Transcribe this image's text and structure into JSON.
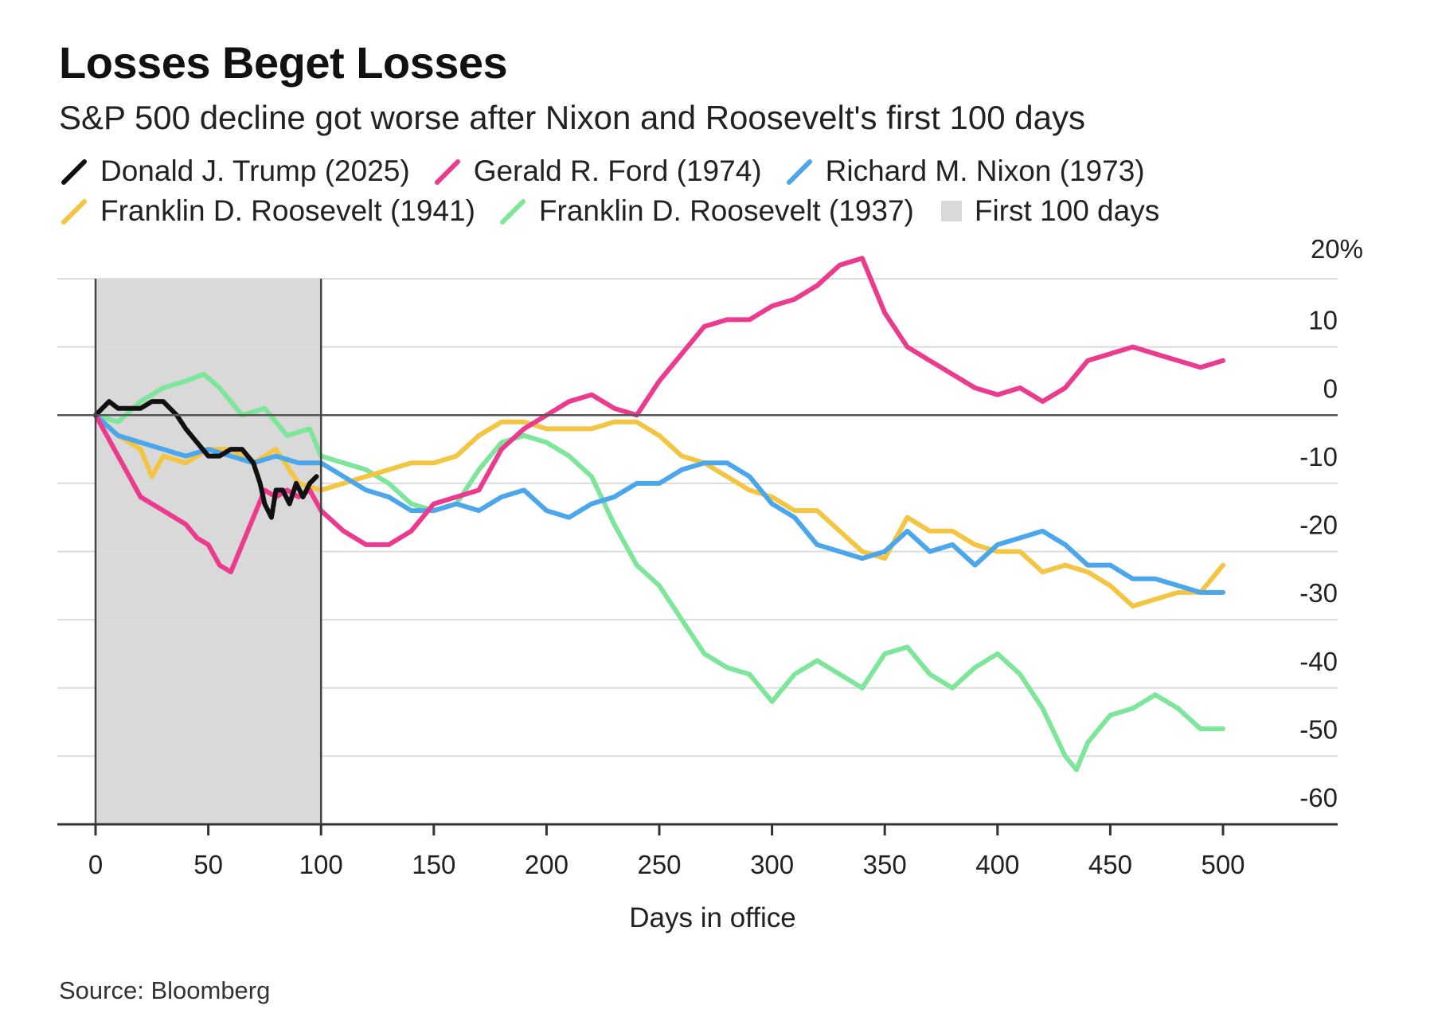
{
  "title": "Losses Beget Losses",
  "subtitle": "S&P 500 decline got worse after Nixon and Roosevelt's first 100 days",
  "source": "Source: Bloomberg",
  "chart_data": {
    "type": "line",
    "xlabel": "Days in office",
    "ylabel": "",
    "xlim": [
      -17,
      530
    ],
    "ylim": [
      -60,
      20
    ],
    "x_ticks": [
      0,
      50,
      100,
      150,
      200,
      250,
      300,
      350,
      400,
      450,
      500
    ],
    "x_tick_labels": [
      "0",
      "50",
      "100",
      "150",
      "200",
      "250",
      "300",
      "350",
      "400",
      "450",
      "500"
    ],
    "y_ticks": [
      20,
      10,
      0,
      -10,
      -20,
      -30,
      -40,
      -50,
      -60
    ],
    "y_tick_labels": [
      "20%",
      "10",
      "0",
      "-10",
      "-20",
      "-30",
      "-40",
      "-50",
      "-60"
    ],
    "shaded_region": {
      "label": "First 100 days",
      "x": [
        0,
        100
      ],
      "color": "#d9d9d9"
    },
    "series": [
      {
        "name": "Franklin D. Roosevelt (1937)",
        "color": "#7de69a",
        "x": [
          0,
          10,
          20,
          30,
          40,
          48,
          55,
          65,
          75,
          85,
          95,
          100,
          110,
          120,
          130,
          140,
          150,
          160,
          170,
          180,
          190,
          200,
          210,
          220,
          230,
          240,
          250,
          260,
          270,
          280,
          290,
          300,
          310,
          320,
          330,
          340,
          350,
          360,
          370,
          380,
          390,
          400,
          410,
          420,
          430,
          435,
          440,
          450,
          460,
          470,
          480,
          490,
          500
        ],
        "y": [
          0,
          -1,
          2,
          4,
          5,
          6,
          4,
          0,
          1,
          -3,
          -2,
          -6,
          -7,
          -8,
          -10,
          -13,
          -14,
          -13,
          -8,
          -4,
          -3,
          -4,
          -6,
          -9,
          -16,
          -22,
          -25,
          -30,
          -35,
          -37,
          -38,
          -42,
          -38,
          -36,
          -38,
          -40,
          -35,
          -34,
          -38,
          -40,
          -37,
          -35,
          -38,
          -43,
          -50,
          -52,
          -48,
          -44,
          -43,
          -41,
          -43,
          -46,
          -46
        ]
      },
      {
        "name": "Franklin D. Roosevelt (1941)",
        "color": "#f4c542",
        "x": [
          0,
          10,
          20,
          25,
          30,
          40,
          50,
          60,
          70,
          80,
          90,
          100,
          110,
          120,
          130,
          140,
          150,
          160,
          170,
          180,
          190,
          200,
          210,
          220,
          230,
          240,
          250,
          260,
          270,
          280,
          290,
          300,
          310,
          320,
          330,
          340,
          350,
          360,
          370,
          380,
          390,
          400,
          410,
          420,
          430,
          440,
          450,
          460,
          470,
          480,
          490,
          500
        ],
        "y": [
          0,
          -3,
          -5,
          -9,
          -6,
          -7,
          -5,
          -5,
          -7,
          -5,
          -10,
          -11,
          -10,
          -9,
          -8,
          -7,
          -7,
          -6,
          -3,
          -1,
          -1,
          -2,
          -2,
          -2,
          -1,
          -1,
          -3,
          -6,
          -7,
          -9,
          -11,
          -12,
          -14,
          -14,
          -17,
          -20,
          -21,
          -15,
          -17,
          -17,
          -19,
          -20,
          -20,
          -23,
          -22,
          -23,
          -25,
          -28,
          -27,
          -26,
          -26,
          -22
        ]
      },
      {
        "name": "Richard M. Nixon (1973)",
        "color": "#4ba6ec",
        "x": [
          0,
          10,
          20,
          30,
          40,
          50,
          60,
          70,
          80,
          90,
          100,
          110,
          120,
          130,
          140,
          150,
          160,
          170,
          180,
          190,
          200,
          210,
          220,
          230,
          240,
          250,
          260,
          270,
          280,
          290,
          300,
          310,
          320,
          330,
          340,
          350,
          360,
          370,
          380,
          390,
          400,
          410,
          420,
          430,
          440,
          450,
          460,
          470,
          480,
          490,
          500
        ],
        "y": [
          0,
          -3,
          -4,
          -5,
          -6,
          -5,
          -6,
          -7,
          -6,
          -7,
          -7,
          -9,
          -11,
          -12,
          -14,
          -14,
          -13,
          -14,
          -12,
          -11,
          -14,
          -15,
          -13,
          -12,
          -10,
          -10,
          -8,
          -7,
          -7,
          -9,
          -13,
          -15,
          -19,
          -20,
          -21,
          -20,
          -17,
          -20,
          -19,
          -22,
          -19,
          -18,
          -17,
          -19,
          -22,
          -22,
          -24,
          -24,
          -25,
          -26,
          -26
        ]
      },
      {
        "name": "Gerald R. Ford (1974)",
        "color": "#ec3a8e",
        "x": [
          0,
          5,
          10,
          15,
          20,
          25,
          30,
          35,
          40,
          45,
          50,
          55,
          60,
          65,
          70,
          75,
          80,
          85,
          90,
          95,
          100,
          110,
          120,
          130,
          140,
          150,
          160,
          170,
          180,
          190,
          200,
          210,
          220,
          230,
          240,
          250,
          260,
          270,
          280,
          290,
          300,
          310,
          320,
          330,
          340,
          350,
          360,
          370,
          380,
          390,
          400,
          410,
          420,
          430,
          440,
          450,
          460,
          470,
          480,
          490,
          500
        ],
        "y": [
          0,
          -3,
          -6,
          -9,
          -12,
          -13,
          -14,
          -15,
          -16,
          -18,
          -19,
          -22,
          -23,
          -19,
          -15,
          -11,
          -12,
          -11,
          -12,
          -11,
          -14,
          -17,
          -19,
          -19,
          -17,
          -13,
          -12,
          -11,
          -5,
          -2,
          0,
          2,
          3,
          1,
          0,
          5,
          9,
          13,
          14,
          14,
          16,
          17,
          19,
          22,
          23,
          15,
          10,
          8,
          6,
          4,
          3,
          4,
          2,
          4,
          8,
          9,
          10,
          9,
          8,
          7,
          8
        ]
      },
      {
        "name": "Donald J. Trump (2025)",
        "color": "#111111",
        "x": [
          0,
          3,
          6,
          10,
          15,
          20,
          25,
          30,
          33,
          36,
          40,
          45,
          50,
          55,
          60,
          65,
          70,
          73,
          75,
          78,
          80,
          83,
          86,
          89,
          92,
          95,
          98
        ],
        "y": [
          0,
          1,
          2,
          1,
          1,
          1,
          2,
          2,
          1,
          0,
          -2,
          -4,
          -6,
          -6,
          -5,
          -5,
          -7,
          -10,
          -13,
          -15,
          -11,
          -11,
          -13,
          -10,
          -12,
          -10,
          -9
        ]
      }
    ]
  },
  "legend": {
    "rows": [
      [
        {
          "label": "Donald J. Trump (2025)",
          "color": "#111111",
          "kind": "line"
        },
        {
          "label": "Gerald R. Ford (1974)",
          "color": "#ec3a8e",
          "kind": "line"
        },
        {
          "label": "Richard M. Nixon (1973)",
          "color": "#4ba6ec",
          "kind": "line"
        }
      ],
      [
        {
          "label": "Franklin D. Roosevelt (1941)",
          "color": "#f4c542",
          "kind": "line"
        },
        {
          "label": "Franklin D. Roosevelt (1937)",
          "color": "#7de69a",
          "kind": "line"
        },
        {
          "label": "First 100 days",
          "color": "#d9d9d9",
          "kind": "box"
        }
      ]
    ]
  }
}
